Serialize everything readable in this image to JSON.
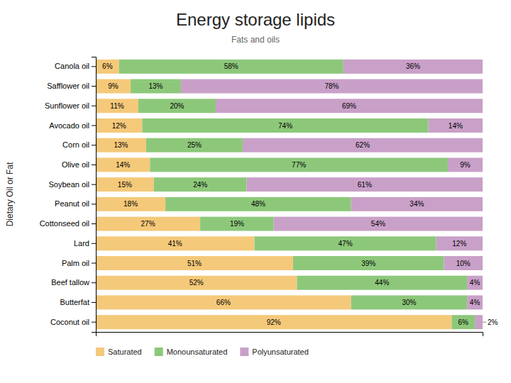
{
  "chart_data": {
    "type": "bar",
    "title": "Energy storage lipids",
    "subtitle": "Fats and oils",
    "ylabel": "Dietary Oil or Fat",
    "orientation": "horizontal",
    "stacked": true,
    "data_labels": true,
    "tick_labels": "y",
    "grid": false,
    "legend": "lower left",
    "xlim": [
      0,
      100
    ],
    "categories": [
      "Canola oil",
      "Safflower oil",
      "Sunflower oil",
      "Avocado oil",
      "Corn oil",
      "Olive oil",
      "Soybean oil",
      "Peanut oil",
      "Cottonseed oil",
      "Lard",
      "Palm oil",
      "Beef tallow",
      "Butterfat",
      "Coconut oil"
    ],
    "series": [
      {
        "name": "Saturated",
        "color": "#f5c97a",
        "values": [
          6,
          9,
          11,
          12,
          13,
          14,
          15,
          18,
          27,
          41,
          51,
          52,
          66,
          92
        ],
        "value_labels": [
          "6%",
          "9%",
          "11%",
          "12%",
          "13%",
          "14%",
          "15%",
          "18%",
          "27%",
          "41%",
          "51%",
          "52%",
          "66%",
          "92%"
        ]
      },
      {
        "name": "Monounsaturated",
        "color": "#8dc87a",
        "values": [
          58,
          13,
          20,
          74,
          25,
          77,
          24,
          48,
          19,
          47,
          39,
          44,
          30,
          6
        ],
        "value_labels": [
          "58%",
          "13%",
          "20%",
          "74%",
          "25%",
          "77%",
          "24%",
          "48%",
          "19%",
          "47%",
          "39%",
          "44%",
          "30%",
          "6%"
        ]
      },
      {
        "name": "Polyunsaturated",
        "color": "#c9a0c8",
        "values": [
          36,
          78,
          69,
          14,
          62,
          9,
          61,
          34,
          54,
          12,
          10,
          4,
          4,
          2
        ],
        "value_labels": [
          "36%",
          "78%",
          "69%",
          "14%",
          "62%",
          "9%",
          "61%",
          "34%",
          "54%",
          "12%",
          "10%",
          "4%",
          "4%",
          "2%"
        ]
      }
    ]
  }
}
